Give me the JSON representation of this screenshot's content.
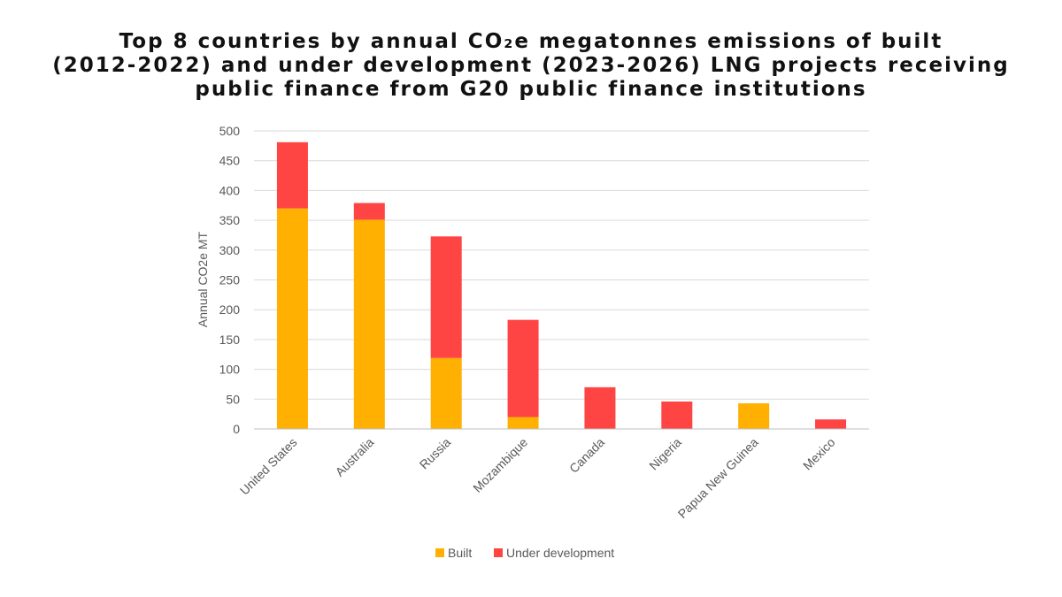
{
  "title_lines": [
    "Top 8 countries by annual CO₂e megatonnes emissions of built",
    "(2012-2022) and under development (2023-2026) LNG projects receiving",
    "public finance from G20 public finance institutions"
  ],
  "chart_data": {
    "type": "bar",
    "stacked": true,
    "title": "Top 8 countries by annual CO₂e megatonnes emissions of built (2012-2022) and under development (2023-2026) LNG projects receiving public finance from G20 public finance institutions",
    "categories": [
      "United States",
      "Australia",
      "Russia",
      "Mozambique",
      "Canada",
      "Nigeria",
      "Papua New Guinea",
      "Mexico"
    ],
    "series": [
      {
        "name": "Built",
        "color": "#FFB000",
        "values": [
          370,
          351,
          119,
          20,
          0,
          0,
          43,
          0
        ]
      },
      {
        "name": "Under development",
        "color": "#FF4444",
        "values": [
          111,
          28,
          204,
          163,
          70,
          46,
          0,
          16
        ]
      }
    ],
    "xlabel": "",
    "ylabel": "Annual CO2e MT",
    "ylim": [
      0,
      500
    ],
    "yticks": [
      0,
      50,
      100,
      150,
      200,
      250,
      300,
      350,
      400,
      450,
      500
    ],
    "grid": true,
    "legend": "bottom",
    "grid_color": "#D9D9D9",
    "axis_color": "#BFBFBF"
  }
}
